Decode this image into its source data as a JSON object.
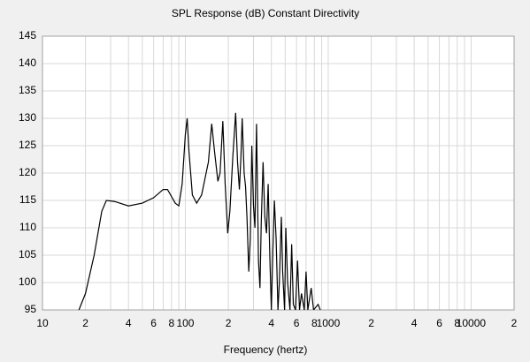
{
  "chart_data": {
    "type": "line",
    "title": "SPL Response (dB)   Constant Directivity",
    "x_label": "Frequency (hertz)",
    "x_scale": "log",
    "xlim": [
      10,
      20000
    ],
    "ylim": [
      95,
      145
    ],
    "yticks": [
      95,
      100,
      105,
      110,
      115,
      120,
      125,
      130,
      135,
      140,
      145
    ],
    "xticks": [
      10,
      {
        "value": 20,
        "label": "2"
      },
      {
        "value": 40,
        "label": "4"
      },
      {
        "value": 60,
        "label": "6"
      },
      {
        "value": 80,
        "label": "8"
      },
      100,
      {
        "value": 200,
        "label": "2"
      },
      {
        "value": 400,
        "label": "4"
      },
      {
        "value": 600,
        "label": "6"
      },
      {
        "value": 800,
        "label": "8"
      },
      1000,
      {
        "value": 2000,
        "label": "2"
      },
      {
        "value": 4000,
        "label": "4"
      },
      {
        "value": 6000,
        "label": "6"
      },
      {
        "value": 8000,
        "label": "8"
      },
      10000,
      {
        "value": 20000,
        "label": "2"
      }
    ],
    "xminor": [
      30,
      50,
      70,
      90,
      300,
      500,
      700,
      900,
      3000,
      5000,
      7000,
      9000
    ],
    "grid": true,
    "series": [
      {
        "color": "#000000",
        "x": [
          18,
          20,
          23,
          26,
          28,
          32,
          40,
          50,
          60,
          70,
          75,
          85,
          90,
          95,
          100,
          103,
          106,
          112,
          120,
          130,
          145,
          153,
          160,
          169,
          175,
          183,
          190,
          198,
          205,
          215,
          225,
          232,
          239,
          245,
          250,
          258,
          264,
          270,
          278,
          285,
          292,
          300,
          307,
          315,
          325,
          333,
          340,
          350,
          360,
          370,
          380,
          390,
          400,
          410,
          420,
          432,
          445,
          455,
          470,
          480,
          495,
          505,
          520,
          540,
          555,
          570,
          590,
          610,
          630,
          650,
          680,
          700,
          720,
          760,
          790,
          850,
          880
        ],
        "values": [
          95,
          98,
          105,
          113,
          115,
          114.8,
          114,
          114.5,
          115.5,
          117,
          117,
          114.5,
          114,
          118,
          127,
          130,
          124,
          116,
          114.5,
          116,
          122,
          129,
          124,
          118.5,
          120,
          129.5,
          118,
          109,
          113,
          123,
          131,
          122,
          117,
          123,
          130,
          120,
          117.5,
          112,
          102,
          108,
          125,
          114,
          110,
          129,
          104,
          99,
          111,
          122,
          112,
          109,
          118,
          105,
          95,
          106,
          115,
          108,
          95,
          100,
          112,
          102,
          95,
          110,
          100,
          95,
          107,
          96,
          95,
          104,
          95,
          98,
          95,
          102,
          95,
          99,
          95,
          96,
          95
        ]
      }
    ]
  }
}
